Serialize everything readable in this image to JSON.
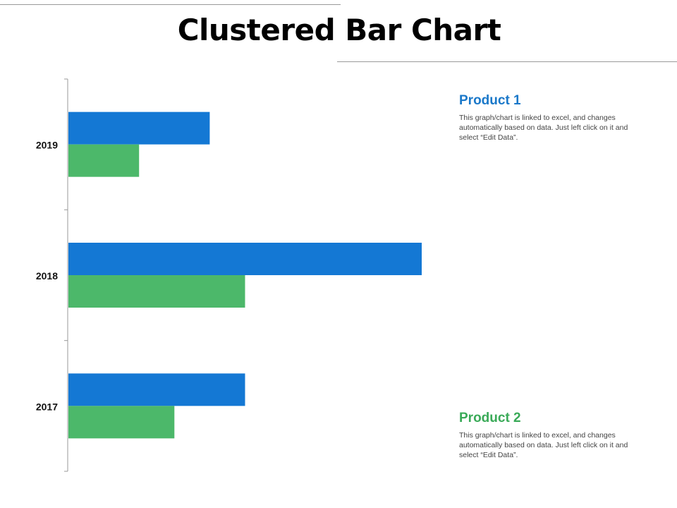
{
  "title": "Clustered Bar Chart",
  "legend": [
    {
      "heading": "Product 1",
      "text": "This graph/chart is linked to excel, and changes automatically based on data. Just left click on it and select “Edit Data”.",
      "color": "#1478d4"
    },
    {
      "heading": "Product 2",
      "text": "This graph/chart is linked to excel, and changes automatically based on data. Just left click on it and select “Edit Data”.",
      "color": "#4cb86a"
    }
  ],
  "chart_data": {
    "type": "bar",
    "orientation": "horizontal",
    "categories": [
      "2017",
      "2018",
      "2019"
    ],
    "series": [
      {
        "name": "Product 1",
        "values": [
          5,
          10,
          4
        ],
        "color": "#1478d4"
      },
      {
        "name": "Product 2",
        "values": [
          3,
          5,
          2
        ],
        "color": "#4cb86a"
      }
    ],
    "xlim": [
      0,
      10
    ],
    "grid": false,
    "legend_position": "right"
  }
}
